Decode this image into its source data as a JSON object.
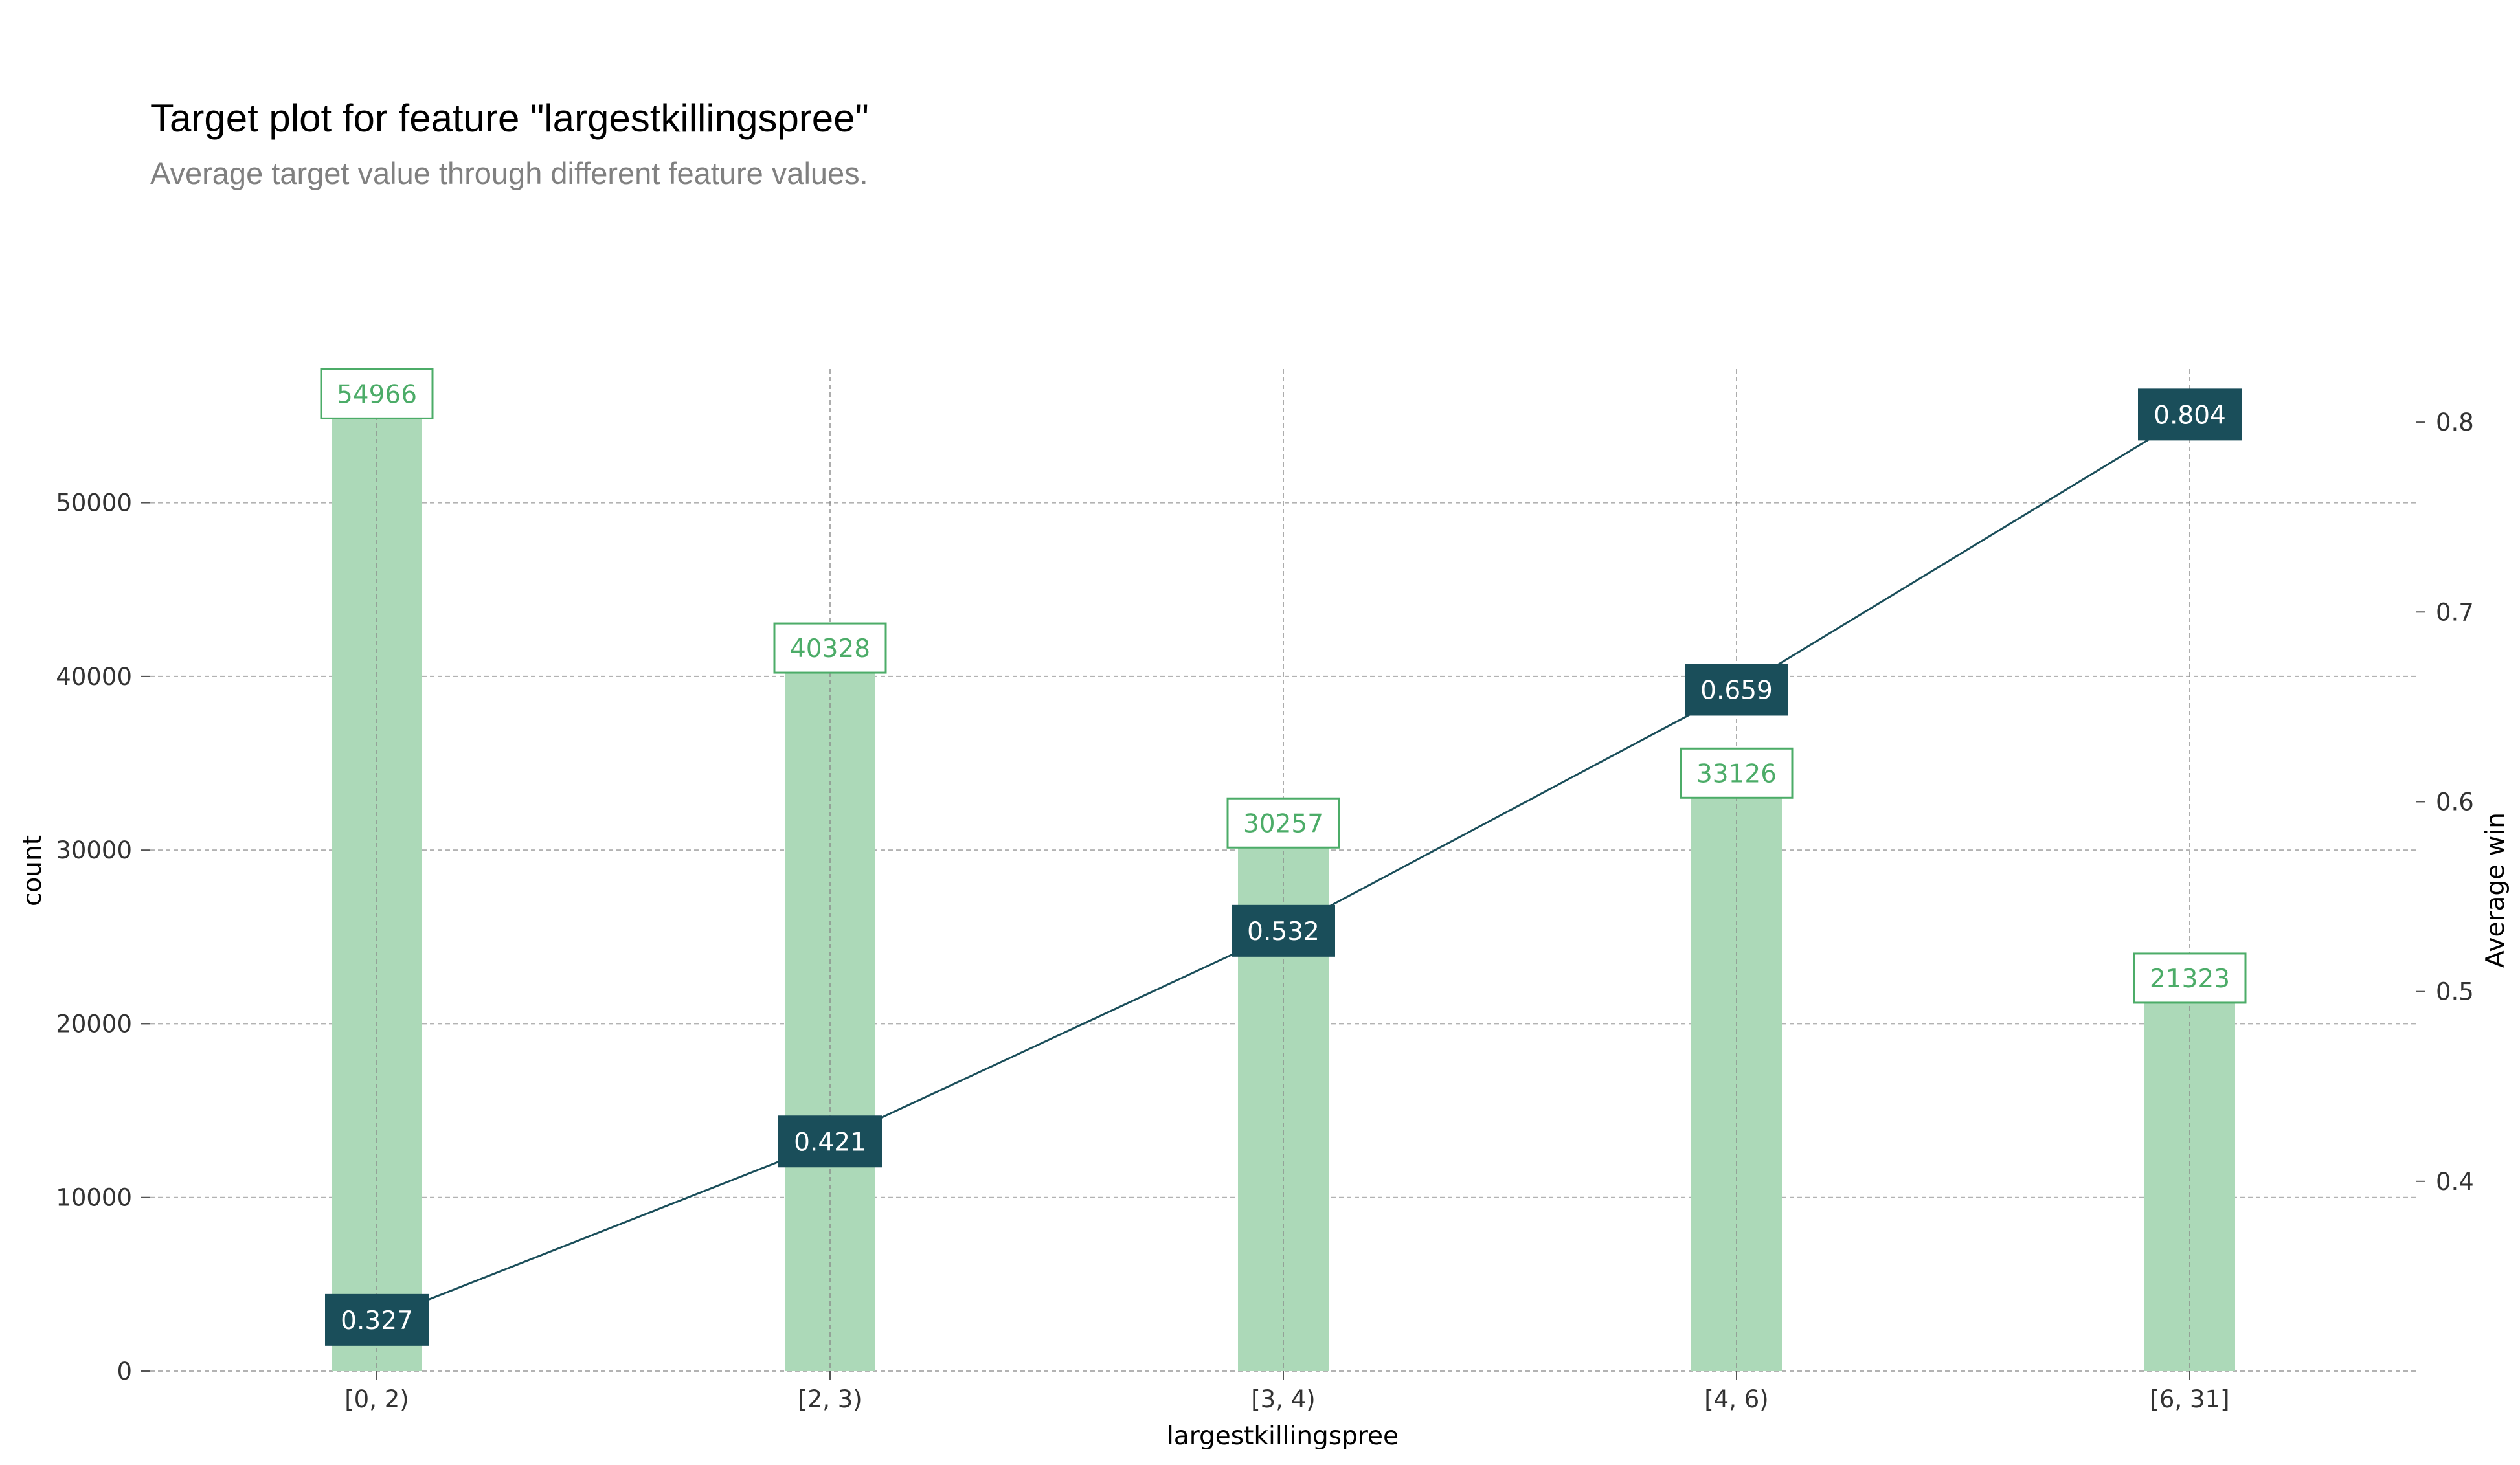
{
  "chart_data": {
    "type": "bar+line",
    "title": "Target plot for feature \"largestkillingspree\"",
    "subtitle": "Average target value through different feature values.",
    "xlabel": "largestkillingspree",
    "ylabel_left": "count",
    "ylabel_right": "Average win",
    "categories": [
      "[0, 2)",
      "[2, 3)",
      "[3, 4)",
      "[4, 6)",
      "[6, 31]"
    ],
    "series": [
      {
        "name": "count",
        "kind": "bar",
        "axis": "left",
        "values": [
          54966,
          40328,
          30257,
          33126,
          21323
        ]
      },
      {
        "name": "Average win",
        "kind": "line",
        "axis": "right",
        "values": [
          0.327,
          0.421,
          0.532,
          0.659,
          0.804
        ]
      }
    ],
    "ylim_left": [
      0,
      57700
    ],
    "yticks_left": [
      0,
      10000,
      20000,
      30000,
      40000,
      50000
    ],
    "ylim_right": [
      0.3,
      0.828
    ],
    "yticks_right": [
      0.4,
      0.5,
      0.6,
      0.7,
      0.8
    ],
    "grid": true,
    "colors": {
      "bar": "#acd9b8",
      "bar_label": "#4cac68",
      "line": "#1a4e5a",
      "grid": "#b3b3b3"
    }
  }
}
